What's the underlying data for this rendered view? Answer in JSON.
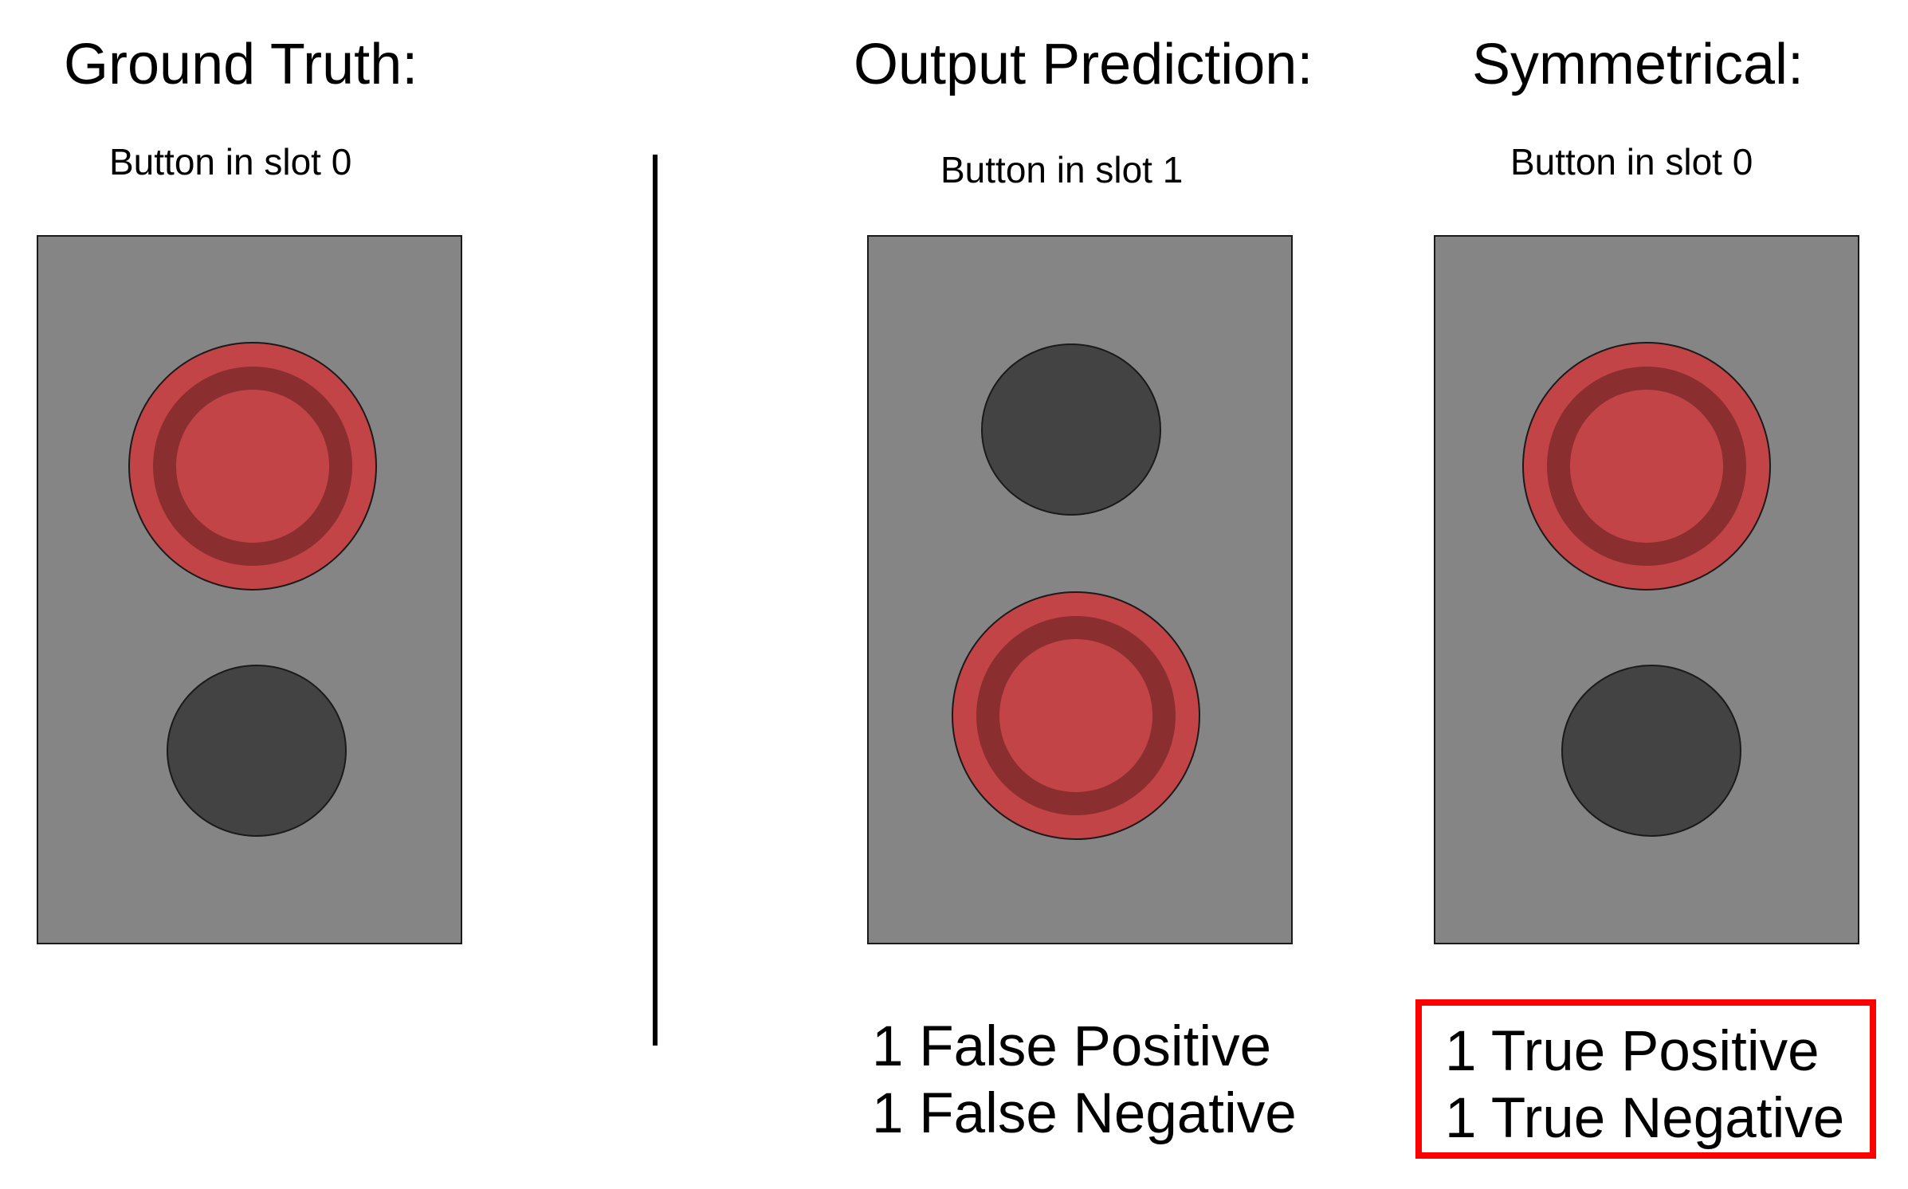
{
  "columns": [
    {
      "heading": "Ground Truth:",
      "sublabel": "Button in slot 0",
      "pressed_slot": 0
    },
    {
      "heading": "Output Prediction:",
      "sublabel": "Button in slot 1",
      "pressed_slot": 1,
      "result_lines": [
        "1 False Positive",
        "1 False Negative"
      ]
    },
    {
      "heading": "Symmetrical:",
      "sublabel": "Button in slot 0",
      "pressed_slot": 0,
      "result_lines": [
        "1 True Positive",
        "1 True Negative"
      ],
      "highlighted": true
    }
  ],
  "colors": {
    "panel_fill": "#858585",
    "panel_stroke": "#1a1a1a",
    "button_red": "#c34446",
    "button_ring": "#8b2e30",
    "button_dark": "#434343",
    "highlight": "#ff0000"
  }
}
